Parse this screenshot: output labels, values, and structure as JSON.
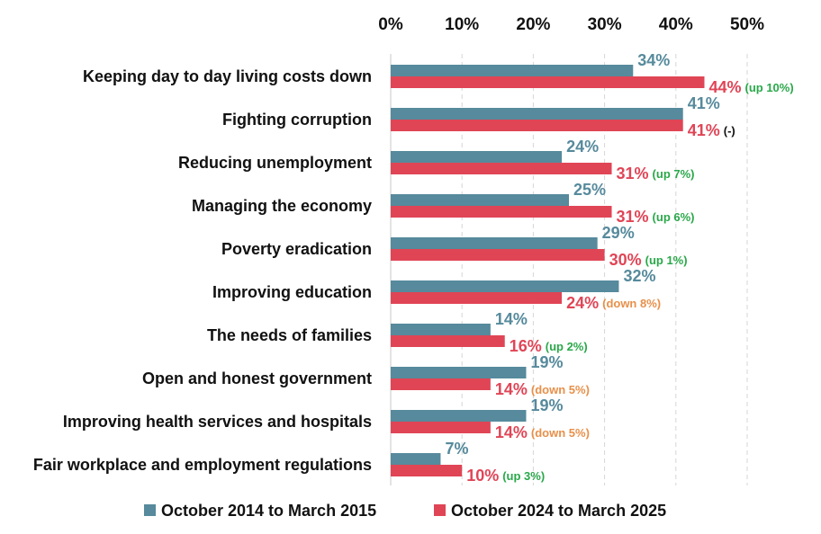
{
  "chart_data": {
    "type": "bar",
    "orientation": "horizontal",
    "title": "",
    "xlabel": "",
    "ylabel": "",
    "xlim": [
      0,
      50
    ],
    "x_ticks": [
      "0%",
      "10%",
      "20%",
      "30%",
      "40%",
      "50%"
    ],
    "x_tick_values": [
      0,
      10,
      20,
      30,
      40,
      50
    ],
    "grid": "vertical dashed",
    "legend_position": "bottom",
    "categories": [
      "Keeping day to day living costs down",
      "Fighting corruption",
      "Reducing unemployment",
      "Managing the economy",
      "Poverty eradication",
      "Improving education",
      "The needs of families",
      "Open and honest government",
      "Improving health services and hospitals",
      "Fair workplace and employment regulations"
    ],
    "series": [
      {
        "name": "October 2014 to March 2015",
        "color": "#568a9c",
        "values": [
          34,
          41,
          24,
          25,
          29,
          32,
          14,
          19,
          19,
          7
        ],
        "labels": [
          "34%",
          "41%",
          "24%",
          "25%",
          "29%",
          "32%",
          "14%",
          "19%",
          "19%",
          "7%"
        ]
      },
      {
        "name": "October 2024 to March 2025",
        "color": "#e04556",
        "values": [
          44,
          41,
          31,
          31,
          30,
          24,
          16,
          14,
          14,
          10
        ],
        "labels": [
          "44%",
          "41%",
          "31%",
          "31%",
          "30%",
          "24%",
          "16%",
          "14%",
          "14%",
          "10%"
        ]
      }
    ],
    "changes": [
      {
        "text": "(up 10%)",
        "color": "#2aa84a"
      },
      {
        "text": "(-)",
        "color": "#111111"
      },
      {
        "text": "(up 7%)",
        "color": "#2aa84a"
      },
      {
        "text": "(up 6%)",
        "color": "#2aa84a"
      },
      {
        "text": "(up 1%)",
        "color": "#2aa84a"
      },
      {
        "text": "(down 8%)",
        "color": "#e8904a"
      },
      {
        "text": "(up 2%)",
        "color": "#2aa84a"
      },
      {
        "text": "(down 5%)",
        "color": "#e8904a"
      },
      {
        "text": "(down 5%)",
        "color": "#e8904a"
      },
      {
        "text": "(up 3%)",
        "color": "#2aa84a"
      }
    ]
  }
}
